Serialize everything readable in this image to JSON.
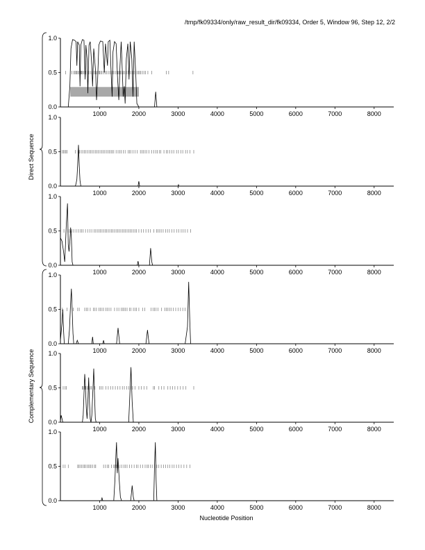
{
  "header": {
    "title": "/tmp/fk09334/only/raw_result_dir/fk09334, Order 5, Window 96, Step 12, 2/2"
  },
  "group_labels": {
    "direct": "Direct Sequence",
    "complementary": "Complementary Sequence"
  },
  "xaxis": {
    "label": "Nucleotide Position"
  },
  "colors": {
    "line": "#000000",
    "highlight": "#a8a8a8",
    "tick": "#777777"
  },
  "chart_data": {
    "type": "line",
    "xlabel": "Nucleotide Position",
    "xlim": [
      0,
      8500
    ],
    "ylim": [
      0,
      1.0
    ],
    "xticks": [
      1000,
      2000,
      3000,
      4000,
      5000,
      6000,
      7000,
      8000
    ],
    "yticks": [
      0.0,
      0.5,
      1.0
    ],
    "panels": [
      {
        "group": "Direct Sequence",
        "highlight": {
          "x": [
            250,
            2000
          ],
          "y": [
            0.15,
            0.29
          ]
        },
        "series": [
          [
            0,
            0
          ],
          [
            200,
            0
          ],
          [
            240,
            0.3
          ],
          [
            270,
            0.85
          ],
          [
            310,
            0.98
          ],
          [
            360,
            0.97
          ],
          [
            400,
            0.95
          ],
          [
            420,
            0.6
          ],
          [
            440,
            0.95
          ],
          [
            480,
            0.9
          ],
          [
            500,
            0.3
          ],
          [
            520,
            0.9
          ],
          [
            560,
            0.98
          ],
          [
            600,
            0.97
          ],
          [
            630,
            0.4
          ],
          [
            650,
            0.9
          ],
          [
            680,
            0.7
          ],
          [
            700,
            0.2
          ],
          [
            730,
            0.9
          ],
          [
            760,
            0.95
          ],
          [
            800,
            0.6
          ],
          [
            820,
            0.3
          ],
          [
            850,
            0.85
          ],
          [
            900,
            0.5
          ],
          [
            920,
            0.1
          ],
          [
            950,
            0.4
          ],
          [
            980,
            0.9
          ],
          [
            1020,
            0.96
          ],
          [
            1080,
            0.95
          ],
          [
            1120,
            0.5
          ],
          [
            1150,
            0.92
          ],
          [
            1200,
            0.6
          ],
          [
            1220,
            0.95
          ],
          [
            1260,
            0.97
          ],
          [
            1300,
            0.4
          ],
          [
            1320,
            0.15
          ],
          [
            1340,
            0.8
          ],
          [
            1380,
            0.95
          ],
          [
            1420,
            0.92
          ],
          [
            1460,
            0.4
          ],
          [
            1490,
            0.1
          ],
          [
            1520,
            0.6
          ],
          [
            1550,
            0.95
          ],
          [
            1580,
            0.5
          ],
          [
            1600,
            0.15
          ],
          [
            1630,
            0.3
          ],
          [
            1650,
            0.05
          ],
          [
            1680,
            0.7
          ],
          [
            1720,
            0.92
          ],
          [
            1750,
            0.4
          ],
          [
            1780,
            0.95
          ],
          [
            1820,
            0.7
          ],
          [
            1850,
            0.15
          ],
          [
            1880,
            0.95
          ],
          [
            1920,
            0.5
          ],
          [
            1950,
            0.05
          ],
          [
            2000,
            0
          ],
          [
            2400,
            0
          ],
          [
            2430,
            0.22
          ],
          [
            2460,
            0
          ],
          [
            2500,
            0
          ],
          [
            8500,
            0
          ]
        ],
        "marks": [
          130,
          290,
          340,
          370,
          395,
          410,
          440,
          470,
          520,
          540,
          560,
          590,
          620,
          650,
          690,
          720,
          760,
          800,
          830,
          860,
          890,
          920,
          950,
          980,
          1000,
          1030,
          1060,
          1100,
          1140,
          1180,
          1220,
          1260,
          1290,
          1320,
          1360,
          1400,
          1440,
          1470,
          1500,
          1530,
          1570,
          1600,
          1640,
          1680,
          1720,
          1760,
          1800,
          1840,
          1880,
          1920,
          1960,
          1990,
          2020,
          2050,
          2090,
          2130,
          2170,
          2230,
          2330,
          2700,
          2760,
          3380
        ]
      },
      {
        "group": "Direct Sequence",
        "highlight": null,
        "series": [
          [
            0,
            0
          ],
          [
            380,
            0
          ],
          [
            400,
            0.04
          ],
          [
            420,
            0.1
          ],
          [
            440,
            0.3
          ],
          [
            460,
            0.6
          ],
          [
            480,
            0.3
          ],
          [
            500,
            0.08
          ],
          [
            520,
            0
          ],
          [
            1980,
            0
          ],
          [
            2000,
            0.07
          ],
          [
            2020,
            0
          ],
          [
            3000,
            0
          ],
          [
            3010,
            0.02
          ],
          [
            3020,
            0
          ],
          [
            8500,
            0
          ]
        ],
        "marks": [
          50,
          80,
          110,
          140,
          170,
          380,
          450,
          490,
          530,
          570,
          610,
          650,
          690,
          730,
          770,
          810,
          850,
          890,
          930,
          970,
          1010,
          1050,
          1090,
          1130,
          1170,
          1210,
          1250,
          1290,
          1320,
          1360,
          1420,
          1470,
          1510,
          1550,
          1600,
          1650,
          1730,
          1760,
          1800,
          1850,
          1900,
          1960,
          2040,
          2080,
          2120,
          2160,
          2200,
          2260,
          2330,
          2380,
          2430,
          2470,
          2520,
          2560,
          2640,
          2700,
          2740,
          2790,
          2840,
          2890,
          2960,
          3010,
          3070,
          3120,
          3190,
          3240,
          3300,
          3400
        ]
      },
      {
        "group": "Direct Sequence",
        "highlight": null,
        "series": [
          [
            0,
            0.4
          ],
          [
            40,
            0.35
          ],
          [
            80,
            0.2
          ],
          [
            110,
            0.05
          ],
          [
            130,
            0.3
          ],
          [
            150,
            0.6
          ],
          [
            180,
            0.9
          ],
          [
            200,
            0.3
          ],
          [
            220,
            0.2
          ],
          [
            240,
            0.35
          ],
          [
            260,
            0.55
          ],
          [
            280,
            0.4
          ],
          [
            300,
            0.05
          ],
          [
            320,
            0
          ],
          [
            1960,
            0
          ],
          [
            1980,
            0.06
          ],
          [
            2000,
            0
          ],
          [
            2270,
            0
          ],
          [
            2300,
            0.25
          ],
          [
            2330,
            0.05
          ],
          [
            2350,
            0
          ],
          [
            8500,
            0
          ]
        ],
        "marks": [
          90,
          190,
          230,
          290,
          340,
          400,
          450,
          500,
          540,
          580,
          640,
          700,
          750,
          800,
          860,
          900,
          940,
          980,
          1020,
          1060,
          1100,
          1140,
          1180,
          1220,
          1260,
          1300,
          1340,
          1380,
          1420,
          1460,
          1500,
          1540,
          1580,
          1620,
          1660,
          1700,
          1740,
          1780,
          1820,
          1860,
          1900,
          1940,
          2000,
          2060,
          2120,
          2180,
          2240,
          2290,
          2380,
          2450,
          2490,
          2530,
          2570,
          2620,
          2680,
          2730,
          2780,
          2840,
          2900,
          2970,
          3020,
          3080,
          3130,
          3180,
          3240,
          3320
        ]
      },
      {
        "group": "Complementary Sequence",
        "highlight": null,
        "series": [
          [
            0,
            0.05
          ],
          [
            40,
            0.3
          ],
          [
            60,
            0.5
          ],
          [
            80,
            0.2
          ],
          [
            100,
            0
          ],
          [
            200,
            0
          ],
          [
            230,
            0.2
          ],
          [
            260,
            0.6
          ],
          [
            280,
            0.8
          ],
          [
            300,
            0.5
          ],
          [
            320,
            0.15
          ],
          [
            340,
            0
          ],
          [
            400,
            0
          ],
          [
            430,
            0.05
          ],
          [
            460,
            0
          ],
          [
            800,
            0
          ],
          [
            820,
            0.1
          ],
          [
            840,
            0
          ],
          [
            1080,
            0
          ],
          [
            1100,
            0.05
          ],
          [
            1120,
            0
          ],
          [
            1430,
            0
          ],
          [
            1470,
            0.23
          ],
          [
            1510,
            0
          ],
          [
            2180,
            0
          ],
          [
            2220,
            0.2
          ],
          [
            2260,
            0
          ],
          [
            3180,
            0
          ],
          [
            3200,
            0.08
          ],
          [
            3240,
            0.25
          ],
          [
            3270,
            0.9
          ],
          [
            3300,
            0.3
          ],
          [
            3320,
            0
          ],
          [
            8500,
            0
          ]
        ],
        "marks": [
          50,
          170,
          330,
          440,
          480,
          620,
          660,
          700,
          760,
          840,
          880,
          920,
          980,
          1020,
          1060,
          1100,
          1160,
          1200,
          1240,
          1290,
          1380,
          1440,
          1490,
          1550,
          1590,
          1620,
          1660,
          1700,
          1760,
          1800,
          1860,
          1900,
          1940,
          2000,
          2100,
          2150,
          2310,
          2360,
          2400,
          2440,
          2490,
          2580,
          2660,
          2700,
          2740,
          2780,
          2820,
          2880,
          2940,
          3000,
          3060,
          3120,
          3180
        ]
      },
      {
        "group": "Complementary Sequence",
        "highlight": null,
        "series": [
          [
            0,
            0.02
          ],
          [
            20,
            0.1
          ],
          [
            40,
            0.05
          ],
          [
            60,
            0
          ],
          [
            560,
            0
          ],
          [
            580,
            0.1
          ],
          [
            600,
            0.4
          ],
          [
            620,
            0.7
          ],
          [
            640,
            0.5
          ],
          [
            660,
            0.2
          ],
          [
            680,
            0.05
          ],
          [
            700,
            0.3
          ],
          [
            720,
            0.65
          ],
          [
            740,
            0.3
          ],
          [
            760,
            0.05
          ],
          [
            780,
            0
          ],
          [
            800,
            0.1
          ],
          [
            830,
            0.5
          ],
          [
            850,
            0.78
          ],
          [
            870,
            0.4
          ],
          [
            890,
            0.05
          ],
          [
            910,
            0
          ],
          [
            1740,
            0
          ],
          [
            1770,
            0.4
          ],
          [
            1800,
            0.8
          ],
          [
            1830,
            0.3
          ],
          [
            1860,
            0
          ],
          [
            8500,
            0
          ]
        ],
        "marks": [
          70,
          120,
          150,
          560,
          580,
          620,
          650,
          690,
          720,
          760,
          790,
          830,
          880,
          1000,
          1040,
          1080,
          1160,
          1220,
          1280,
          1340,
          1400,
          1460,
          1520,
          1580,
          1630,
          1690,
          1740,
          1780,
          1840,
          1900,
          2000,
          2060,
          2130,
          2200,
          2370,
          2400,
          2510,
          2580,
          2640,
          2740,
          2800,
          2860,
          2920,
          2990,
          3060,
          3130,
          3200,
          3400
        ]
      },
      {
        "group": "Complementary Sequence",
        "highlight": null,
        "series": [
          [
            0,
            0
          ],
          [
            1040,
            0
          ],
          [
            1060,
            0.04
          ],
          [
            1080,
            0
          ],
          [
            1360,
            0
          ],
          [
            1390,
            0.3
          ],
          [
            1410,
            0.6
          ],
          [
            1430,
            0.85
          ],
          [
            1450,
            0.4
          ],
          [
            1470,
            0.62
          ],
          [
            1500,
            0.3
          ],
          [
            1530,
            0.05
          ],
          [
            1560,
            0
          ],
          [
            1790,
            0
          ],
          [
            1810,
            0.1
          ],
          [
            1830,
            0.22
          ],
          [
            1860,
            0.05
          ],
          [
            1880,
            0
          ],
          [
            2380,
            0
          ],
          [
            2400,
            0.5
          ],
          [
            2420,
            0.85
          ],
          [
            2440,
            0.3
          ],
          [
            2460,
            0
          ],
          [
            8500,
            0
          ]
        ],
        "marks": [
          70,
          120,
          200,
          440,
          470,
          500,
          540,
          580,
          610,
          640,
          680,
          720,
          750,
          780,
          820,
          870,
          900,
          1100,
          1150,
          1200,
          1230,
          1300,
          1360,
          1390,
          1430,
          1470,
          1520,
          1570,
          1620,
          1660,
          1700,
          1760,
          1820,
          1880,
          1940,
          1980,
          2040,
          2100,
          2160,
          2210,
          2240,
          2290,
          2340,
          2400,
          2460,
          2510,
          2570,
          2630,
          2680,
          2740,
          2790,
          2850,
          2900,
          2960,
          3020,
          3080,
          3150,
          3220,
          3300
        ]
      }
    ]
  }
}
